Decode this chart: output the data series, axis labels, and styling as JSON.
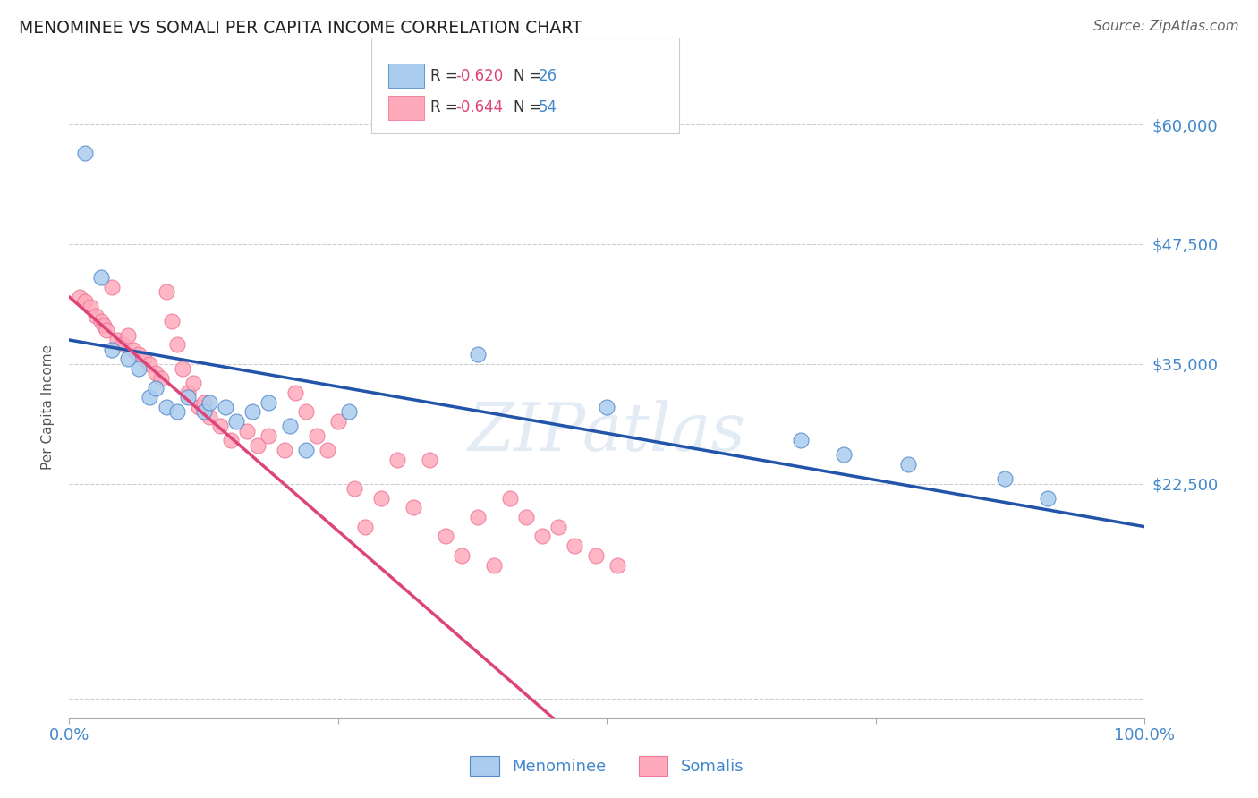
{
  "title": "MENOMINEE VS SOMALI PER CAPITA INCOME CORRELATION CHART",
  "source": "Source: ZipAtlas.com",
  "ylabel": "Per Capita Income",
  "xlim": [
    0,
    100
  ],
  "ylim": [
    -2000,
    63000
  ],
  "yticks": [
    0,
    22500,
    35000,
    47500,
    60000
  ],
  "ytick_labels": [
    "",
    "$22,500",
    "$35,000",
    "$47,500",
    "$60,000"
  ],
  "menominee_color": "#AACCEE",
  "somali_color": "#FFAABB",
  "menominee_edge_color": "#5588CC",
  "somali_edge_color": "#EE7799",
  "menominee_line_color": "#2255AA",
  "somali_line_color": "#DD4477",
  "label_color": "#4488CC",
  "legend_label1": "Menominee",
  "legend_label2": "Somalis",
  "menominee_x": [
    1.5,
    3.0,
    4.0,
    5.5,
    6.5,
    7.5,
    8.0,
    9.0,
    10.0,
    11.0,
    12.5,
    13.0,
    14.5,
    15.5,
    17.0,
    18.5,
    20.5,
    22.0,
    26.0,
    38.0,
    50.0,
    68.0,
    72.0,
    78.0,
    87.0,
    91.0
  ],
  "menominee_y": [
    57000,
    44000,
    36500,
    35500,
    34500,
    31500,
    32500,
    30500,
    30000,
    31500,
    30000,
    31000,
    30500,
    29000,
    30000,
    31000,
    28500,
    26000,
    30000,
    36000,
    30500,
    27000,
    25500,
    24500,
    23000,
    21000
  ],
  "somali_x": [
    1.0,
    1.5,
    2.0,
    2.5,
    3.0,
    3.2,
    3.5,
    4.0,
    4.5,
    5.0,
    5.5,
    6.0,
    6.5,
    7.0,
    7.5,
    8.0,
    8.5,
    9.0,
    9.5,
    10.0,
    10.5,
    11.0,
    11.5,
    12.0,
    12.5,
    13.0,
    14.0,
    15.0,
    16.5,
    17.5,
    18.5,
    20.0,
    21.0,
    22.0,
    23.0,
    24.0,
    25.0,
    26.5,
    27.5,
    29.0,
    30.5,
    32.0,
    33.5,
    35.0,
    36.5,
    38.0,
    39.5,
    41.0,
    42.5,
    44.0,
    45.5,
    47.0,
    49.0,
    51.0
  ],
  "somali_y": [
    42000,
    41500,
    41000,
    40000,
    39500,
    39000,
    38500,
    43000,
    37500,
    37000,
    38000,
    36500,
    36000,
    35500,
    35000,
    34000,
    33500,
    42500,
    39500,
    37000,
    34500,
    32000,
    33000,
    30500,
    31000,
    29500,
    28500,
    27000,
    28000,
    26500,
    27500,
    26000,
    32000,
    30000,
    27500,
    26000,
    29000,
    22000,
    18000,
    21000,
    25000,
    20000,
    25000,
    17000,
    15000,
    19000,
    14000,
    21000,
    19000,
    17000,
    18000,
    16000,
    15000,
    14000
  ]
}
